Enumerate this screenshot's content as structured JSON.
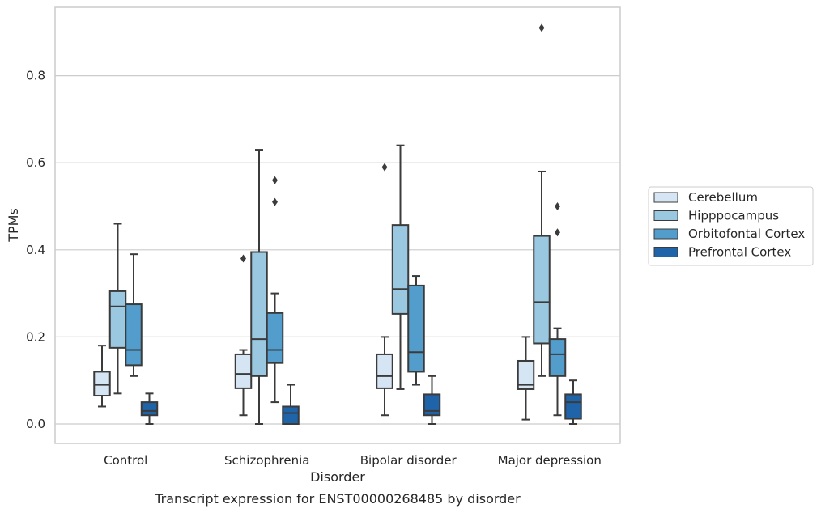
{
  "chart_data": {
    "type": "box",
    "title": "",
    "caption": "Transcript expression for ENST00000268485 by disorder",
    "xlabel": "Disorder",
    "ylabel": "TPMs",
    "ylim": [
      -0.045,
      0.96
    ],
    "yticks": [
      "0.0",
      "0.2",
      "0.4",
      "0.6",
      "0.8"
    ],
    "grid": "horizontal",
    "legend_position": "right",
    "categories": [
      "Control",
      "Schizophrenia",
      "Bipolar disorder",
      "Major depression"
    ],
    "series": [
      {
        "name": "Cerebellum",
        "color": "#d6e5f4",
        "boxes": [
          {
            "whisker_low": 0.04,
            "q1": 0.065,
            "median": 0.09,
            "q3": 0.12,
            "whisker_high": 0.18,
            "outliers": []
          },
          {
            "whisker_low": 0.02,
            "q1": 0.082,
            "median": 0.115,
            "q3": 0.16,
            "whisker_high": 0.17,
            "outliers": [
              0.38
            ]
          },
          {
            "whisker_low": 0.02,
            "q1": 0.082,
            "median": 0.11,
            "q3": 0.16,
            "whisker_high": 0.2,
            "outliers": [
              0.59
            ]
          },
          {
            "whisker_low": 0.01,
            "q1": 0.08,
            "median": 0.09,
            "q3": 0.145,
            "whisker_high": 0.2,
            "outliers": []
          }
        ]
      },
      {
        "name": "Hipppocampus",
        "color": "#9ac8e0",
        "boxes": [
          {
            "whisker_low": 0.07,
            "q1": 0.175,
            "median": 0.27,
            "q3": 0.305,
            "whisker_high": 0.46,
            "outliers": []
          },
          {
            "whisker_low": 0.0,
            "q1": 0.11,
            "median": 0.195,
            "q3": 0.395,
            "whisker_high": 0.63,
            "outliers": []
          },
          {
            "whisker_low": 0.08,
            "q1": 0.253,
            "median": 0.31,
            "q3": 0.457,
            "whisker_high": 0.64,
            "outliers": []
          },
          {
            "whisker_low": 0.11,
            "q1": 0.185,
            "median": 0.28,
            "q3": 0.432,
            "whisker_high": 0.58,
            "outliers": [
              0.91
            ]
          }
        ]
      },
      {
        "name": "Orbitofontal Cortex",
        "color": "#529dcc",
        "boxes": [
          {
            "whisker_low": 0.11,
            "q1": 0.135,
            "median": 0.17,
            "q3": 0.275,
            "whisker_high": 0.39,
            "outliers": []
          },
          {
            "whisker_low": 0.05,
            "q1": 0.14,
            "median": 0.17,
            "q3": 0.255,
            "whisker_high": 0.3,
            "outliers": [
              0.51,
              0.56
            ]
          },
          {
            "whisker_low": 0.09,
            "q1": 0.12,
            "median": 0.165,
            "q3": 0.318,
            "whisker_high": 0.34,
            "outliers": []
          },
          {
            "whisker_low": 0.02,
            "q1": 0.11,
            "median": 0.16,
            "q3": 0.195,
            "whisker_high": 0.22,
            "outliers": [
              0.44,
              0.5
            ]
          }
        ]
      },
      {
        "name": "Prefrontal Cortex",
        "color": "#1f63a8",
        "boxes": [
          {
            "whisker_low": 0.0,
            "q1": 0.02,
            "median": 0.03,
            "q3": 0.05,
            "whisker_high": 0.07,
            "outliers": []
          },
          {
            "whisker_low": 0.0,
            "q1": 0.0,
            "median": 0.025,
            "q3": 0.04,
            "whisker_high": 0.09,
            "outliers": []
          },
          {
            "whisker_low": 0.0,
            "q1": 0.02,
            "median": 0.03,
            "q3": 0.068,
            "whisker_high": 0.11,
            "outliers": []
          },
          {
            "whisker_low": 0.0,
            "q1": 0.012,
            "median": 0.05,
            "q3": 0.068,
            "whisker_high": 0.1,
            "outliers": []
          }
        ]
      }
    ]
  }
}
